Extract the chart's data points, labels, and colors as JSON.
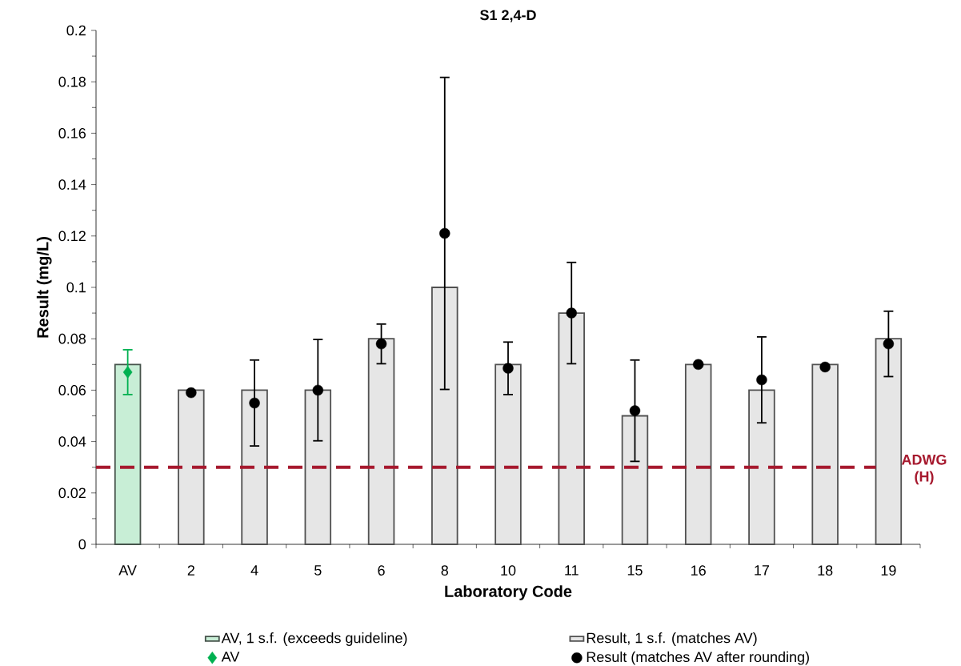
{
  "chart_data": {
    "type": "bar",
    "title": "S1 2,4-D",
    "xlabel": "Laboratory Code",
    "ylabel": "Result (mg/L)",
    "categories": [
      "AV",
      "2",
      "4",
      "5",
      "6",
      "8",
      "10",
      "11",
      "15",
      "16",
      "17",
      "18",
      "19"
    ],
    "series": [
      {
        "name": "AV, 1 s.f. (exceeds guideline)",
        "color": "#c8eed6",
        "values": [
          0.07,
          null,
          null,
          null,
          null,
          null,
          null,
          null,
          null,
          null,
          null,
          null,
          null
        ]
      },
      {
        "name": "Result, 1 s.f. (matches AV)",
        "color": "#e6e6e6",
        "values": [
          null,
          0.06,
          0.06,
          0.06,
          0.08,
          0.1,
          0.07,
          0.09,
          0.05,
          0.07,
          0.06,
          0.07,
          0.08
        ]
      },
      {
        "name": "AV",
        "type": "scatter",
        "marker": "diamond",
        "color": "#00b050",
        "values": [
          0.067,
          null,
          null,
          null,
          null,
          null,
          null,
          null,
          null,
          null,
          null,
          null,
          null
        ],
        "errors": [
          [
            0.058,
            0.076
          ],
          null,
          null,
          null,
          null,
          null,
          null,
          null,
          null,
          null,
          null,
          null,
          null
        ]
      },
      {
        "name": "Result (matches AV after rounding)",
        "type": "scatter",
        "marker": "circle",
        "color": "#000000",
        "values": [
          null,
          0.059,
          0.055,
          0.06,
          0.078,
          0.121,
          0.0685,
          0.09,
          0.052,
          0.07,
          0.064,
          0.069,
          0.078
        ],
        "errors": [
          null,
          null,
          [
            0.038,
            0.072
          ],
          [
            0.04,
            0.08
          ],
          [
            0.07,
            0.086
          ],
          [
            0.06,
            0.182
          ],
          [
            0.058,
            0.079
          ],
          [
            0.07,
            0.11
          ],
          [
            0.032,
            0.072
          ],
          null,
          [
            0.047,
            0.081
          ],
          null,
          [
            0.065,
            0.091
          ]
        ]
      }
    ],
    "ylim": [
      0,
      0.2
    ],
    "yticks": [
      0,
      0.02,
      0.04,
      0.06,
      0.08,
      0.1,
      0.12,
      0.14,
      0.16,
      0.18,
      0.2
    ],
    "ref_lines": [
      {
        "axis": "y",
        "value": 0.03,
        "label": "ADWG (H)",
        "color": "#a6192e",
        "line_style": "dashed"
      }
    ],
    "grid": false,
    "legend": "bottom"
  }
}
